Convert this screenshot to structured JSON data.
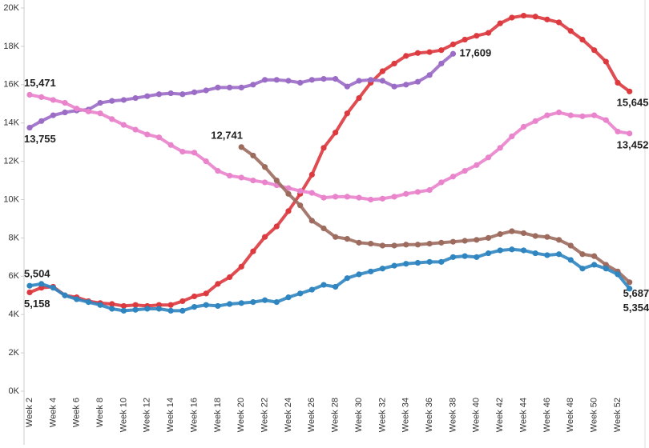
{
  "chart_data": {
    "type": "line",
    "categories": [
      "Week 2",
      null,
      "Week 4",
      null,
      "Week 6",
      null,
      "Week 8",
      null,
      "Week 10",
      null,
      "Week 12",
      null,
      "Week 14",
      null,
      "Week 16",
      null,
      "Week 18",
      null,
      "Week 20",
      null,
      "Week 22",
      null,
      "Week 24",
      null,
      "Week 26",
      null,
      "Week 28",
      null,
      "Week 30",
      null,
      "Week 32",
      null,
      "Week 34",
      null,
      "Week 36",
      null,
      "Week 38",
      null,
      "Week 40",
      null,
      "Week 42",
      null,
      "Week 44",
      null,
      "Week 46",
      null,
      "Week 48",
      null,
      "Week 50",
      null,
      "Week 52",
      null
    ],
    "ylim": [
      0,
      20000
    ],
    "yticks": [
      {
        "value": 0,
        "label": "0K"
      },
      {
        "value": 2000,
        "label": "2K"
      },
      {
        "value": 4000,
        "label": "4K"
      },
      {
        "value": 6000,
        "label": "6K"
      },
      {
        "value": 8000,
        "label": "8K"
      },
      {
        "value": 10000,
        "label": "10K"
      },
      {
        "value": 12000,
        "label": "12K"
      },
      {
        "value": 14000,
        "label": "14K"
      },
      {
        "value": 16000,
        "label": "16K"
      },
      {
        "value": 18000,
        "label": "18K"
      },
      {
        "value": 20000,
        "label": "20K"
      }
    ],
    "grid": false,
    "series": [
      {
        "color": "#dc3a3f",
        "values": [
          5158,
          5400,
          5450,
          5000,
          4900,
          4700,
          4600,
          4550,
          4450,
          4500,
          4450,
          4500,
          4500,
          4700,
          4950,
          5100,
          5600,
          5950,
          6500,
          7300,
          8050,
          8600,
          9400,
          10300,
          11300,
          12700,
          13500,
          14500,
          15300,
          16100,
          16700,
          17100,
          17500,
          17650,
          17700,
          17800,
          18100,
          18350,
          18550,
          18700,
          19200,
          19500,
          19600,
          19550,
          19400,
          19250,
          18800,
          18350,
          17800,
          17200,
          16100,
          15645
        ],
        "value_labels": [
          "5,158",
          null,
          null,
          null,
          null,
          null,
          null,
          null,
          null,
          null,
          null,
          null,
          null,
          null,
          null,
          null,
          null,
          null,
          null,
          null,
          null,
          null,
          null,
          null,
          null,
          null,
          null,
          null,
          null,
          null,
          null,
          null,
          null,
          null,
          null,
          null,
          null,
          null,
          null,
          null,
          null,
          null,
          null,
          null,
          null,
          null,
          null,
          null,
          null,
          null,
          null,
          "15,645"
        ]
      },
      {
        "color": "#9b6cc6",
        "values": [
          13755,
          14100,
          14400,
          14550,
          14650,
          14700,
          15050,
          15150,
          15200,
          15300,
          15400,
          15500,
          15550,
          15500,
          15600,
          15700,
          15850,
          15850,
          15850,
          16000,
          16250,
          16250,
          16200,
          16100,
          16250,
          16300,
          16300,
          15900,
          16200,
          16250,
          16200,
          15900,
          16000,
          16150,
          16500,
          17100,
          17609,
          null,
          null,
          null,
          null,
          null,
          null,
          null,
          null,
          null,
          null,
          null,
          null,
          null,
          null,
          null
        ],
        "value_labels": [
          "13,755",
          null,
          null,
          null,
          null,
          null,
          null,
          null,
          null,
          null,
          null,
          null,
          null,
          null,
          null,
          null,
          null,
          null,
          null,
          null,
          null,
          null,
          null,
          null,
          null,
          null,
          null,
          null,
          null,
          null,
          null,
          null,
          null,
          null,
          null,
          null,
          "17,609",
          null,
          null,
          null,
          null,
          null,
          null,
          null,
          null,
          null,
          null,
          null,
          null,
          null,
          null,
          null
        ]
      },
      {
        "color": "#e983cc",
        "values": [
          15471,
          15350,
          15200,
          15050,
          14750,
          14600,
          14500,
          14200,
          13900,
          13650,
          13400,
          13250,
          12850,
          12500,
          12450,
          12000,
          11500,
          11250,
          11150,
          11000,
          10900,
          10750,
          10600,
          10450,
          10350,
          10100,
          10150,
          10150,
          10100,
          10000,
          10050,
          10150,
          10300,
          10400,
          10500,
          10900,
          11200,
          11500,
          11800,
          12200,
          12700,
          13300,
          13800,
          14100,
          14400,
          14550,
          14400,
          14350,
          14400,
          14150,
          13550,
          13452
        ],
        "value_labels": [
          "15,471",
          null,
          null,
          null,
          null,
          null,
          null,
          null,
          null,
          null,
          null,
          null,
          null,
          null,
          null,
          null,
          null,
          null,
          null,
          null,
          null,
          null,
          null,
          null,
          null,
          null,
          null,
          null,
          null,
          null,
          null,
          null,
          null,
          null,
          null,
          null,
          null,
          null,
          null,
          null,
          null,
          null,
          null,
          null,
          null,
          null,
          null,
          null,
          null,
          null,
          null,
          "13,452"
        ]
      },
      {
        "color": "#9c6b5e",
        "values": [
          null,
          null,
          null,
          null,
          null,
          null,
          null,
          null,
          null,
          null,
          null,
          null,
          null,
          null,
          null,
          null,
          null,
          null,
          12741,
          12300,
          11700,
          11000,
          10300,
          9700,
          8900,
          8500,
          8050,
          7950,
          7750,
          7700,
          7600,
          7600,
          7650,
          7650,
          7700,
          7750,
          7800,
          7850,
          7900,
          8000,
          8200,
          8350,
          8250,
          8100,
          8050,
          7900,
          7600,
          7150,
          7050,
          6600,
          6250,
          5687
        ],
        "value_labels": [
          null,
          null,
          null,
          null,
          null,
          null,
          null,
          null,
          null,
          null,
          null,
          null,
          null,
          null,
          null,
          null,
          null,
          null,
          "12,741",
          null,
          null,
          null,
          null,
          null,
          null,
          null,
          null,
          null,
          null,
          null,
          null,
          null,
          null,
          null,
          null,
          null,
          null,
          null,
          null,
          null,
          null,
          null,
          null,
          null,
          null,
          null,
          null,
          null,
          null,
          null,
          null,
          "5,687"
        ]
      },
      {
        "color": "#2f85c0",
        "values": [
          5504,
          5600,
          5400,
          5000,
          4800,
          4650,
          4500,
          4300,
          4200,
          4250,
          4300,
          4300,
          4200,
          4200,
          4400,
          4500,
          4450,
          4550,
          4600,
          4650,
          4750,
          4650,
          4900,
          5100,
          5300,
          5550,
          5450,
          5900,
          6100,
          6250,
          6400,
          6550,
          6650,
          6700,
          6750,
          6750,
          7000,
          7050,
          7000,
          7200,
          7350,
          7400,
          7350,
          7200,
          7100,
          7150,
          6850,
          6400,
          6600,
          6400,
          6100,
          5354
        ],
        "value_labels": [
          "5,504",
          null,
          null,
          null,
          null,
          null,
          null,
          null,
          null,
          null,
          null,
          null,
          null,
          null,
          null,
          null,
          null,
          null,
          null,
          null,
          null,
          null,
          null,
          null,
          null,
          null,
          null,
          null,
          null,
          null,
          null,
          null,
          null,
          null,
          null,
          null,
          null,
          null,
          null,
          null,
          null,
          null,
          null,
          null,
          null,
          null,
          null,
          null,
          null,
          null,
          null,
          "5,354"
        ]
      }
    ]
  }
}
